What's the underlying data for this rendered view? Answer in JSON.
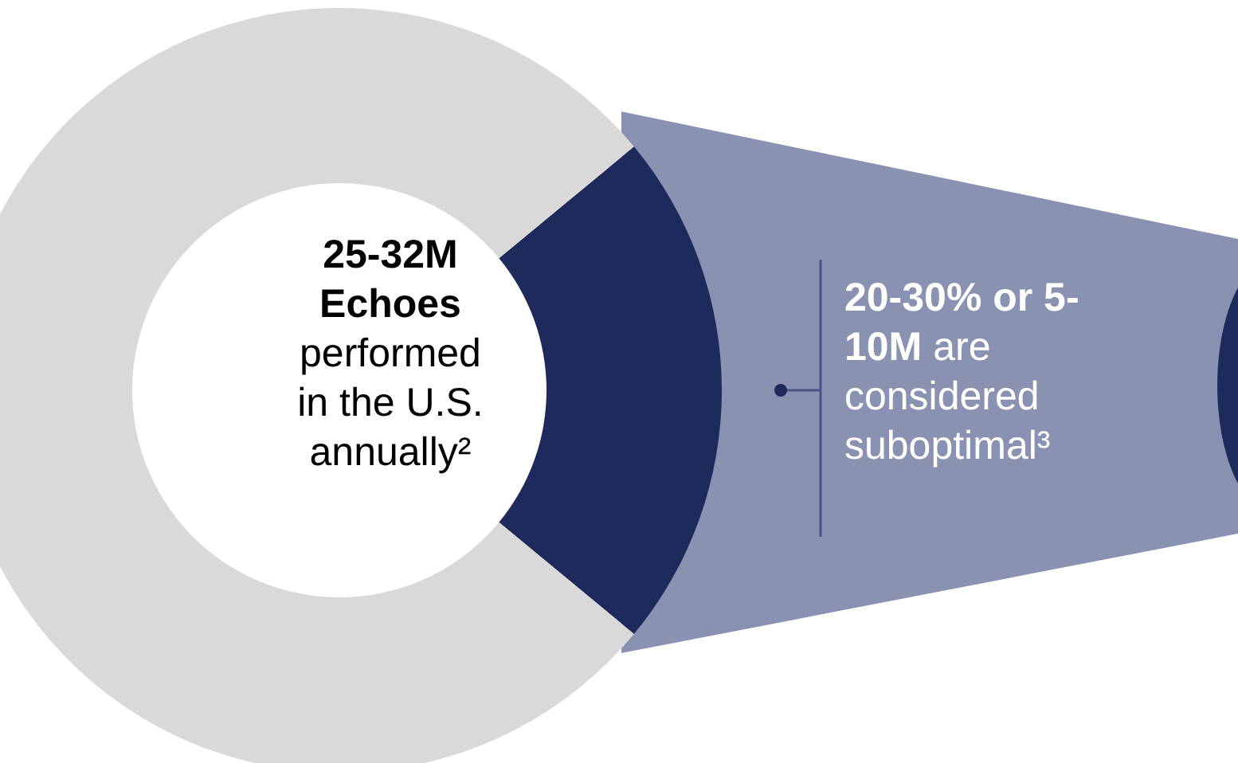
{
  "chart_data": {
    "type": "donut",
    "categories": [
      null,
      null
    ],
    "values": [
      22,
      78
    ],
    "colors": [
      "#1f2a5c",
      "#d9d9d9"
    ],
    "annotations": [
      "25-32M Echoes",
      "performed in the U.S. annually²",
      "20-30% or 5-10M",
      "are considered suboptimal³"
    ]
  }
}
